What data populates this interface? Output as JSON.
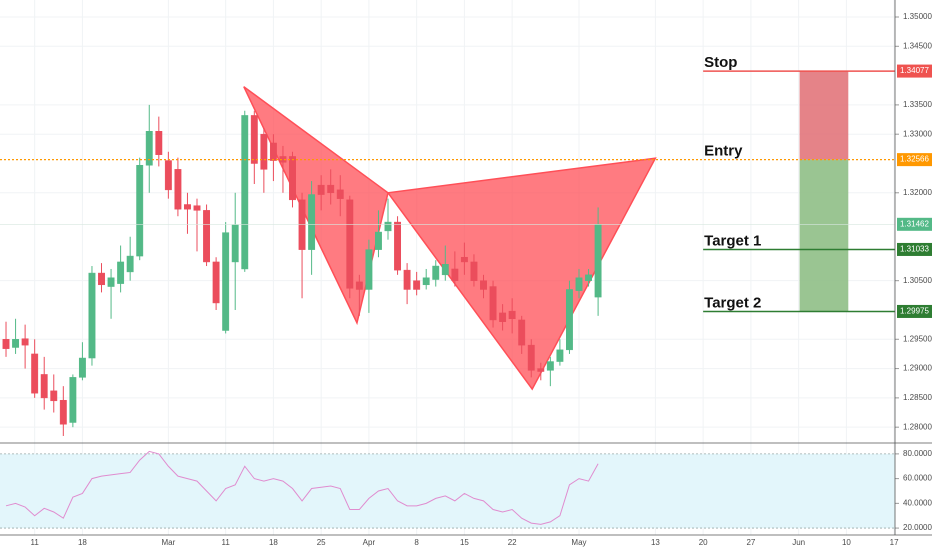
{
  "chart_data": [
    {
      "type": "candlestick",
      "up_color": "#53b987",
      "down_color": "#eb4d5c",
      "open": [
        1.295,
        1.2936,
        1.2951,
        1.2925,
        1.289,
        1.2862,
        1.2846,
        1.2808,
        1.2885,
        1.2918,
        1.3063,
        1.304,
        1.3045,
        1.3065,
        1.3092,
        1.3247,
        1.3305,
        1.3255,
        1.324,
        1.318,
        1.3178,
        1.317,
        1.3082,
        1.2965,
        1.3082,
        1.307,
        1.3332,
        1.33,
        1.3285,
        1.3262,
        1.3262,
        1.3188,
        1.3103,
        1.3213,
        1.3213,
        1.3205,
        1.3188,
        1.3048,
        1.3035,
        1.3103,
        1.3135,
        1.315,
        1.3068,
        1.305,
        1.3043,
        1.3052,
        1.306,
        1.307,
        1.309,
        1.3082,
        1.305,
        1.304,
        1.2995,
        1.2998,
        1.2983,
        1.294,
        1.29,
        1.2897,
        1.2912,
        1.2932,
        1.3033,
        1.305,
        1.3022
      ],
      "high": [
        1.298,
        1.2985,
        1.2975,
        1.295,
        1.292,
        1.289,
        1.287,
        1.289,
        1.2945,
        1.3075,
        1.308,
        1.307,
        1.311,
        1.3125,
        1.326,
        1.335,
        1.333,
        1.327,
        1.326,
        1.32,
        1.319,
        1.318,
        1.309,
        1.315,
        1.32,
        1.334,
        1.334,
        1.331,
        1.33,
        1.328,
        1.327,
        1.32,
        1.322,
        1.323,
        1.324,
        1.323,
        1.3195,
        1.306,
        1.312,
        1.317,
        1.319,
        1.316,
        1.308,
        1.3065,
        1.307,
        1.3085,
        1.311,
        1.31,
        1.3115,
        1.3095,
        1.306,
        1.305,
        1.301,
        1.302,
        1.299,
        1.295,
        1.291,
        1.292,
        1.295,
        1.305,
        1.307,
        1.307,
        1.3175
      ],
      "low": [
        1.292,
        1.2925,
        1.29,
        1.285,
        1.283,
        1.2825,
        1.2785,
        1.28,
        1.288,
        1.2905,
        1.303,
        1.2985,
        1.303,
        1.305,
        1.3085,
        1.32,
        1.3245,
        1.319,
        1.316,
        1.313,
        1.31,
        1.3075,
        1.3,
        1.296,
        1.3,
        1.3065,
        1.3215,
        1.32,
        1.322,
        1.32,
        1.3175,
        1.302,
        1.306,
        1.317,
        1.318,
        1.316,
        1.302,
        1.299,
        1.2995,
        1.309,
        1.312,
        1.306,
        1.301,
        1.3025,
        1.3035,
        1.304,
        1.305,
        1.304,
        1.306,
        1.304,
        1.302,
        1.297,
        1.2965,
        1.296,
        1.2925,
        1.2885,
        1.288,
        1.287,
        1.2905,
        1.2925,
        1.302,
        1.304,
        1.299
      ],
      "close": [
        1.2934,
        1.295,
        1.294,
        1.2858,
        1.285,
        1.2845,
        1.2805,
        1.2885,
        1.2918,
        1.3063,
        1.3043,
        1.3055,
        1.3082,
        1.3092,
        1.3247,
        1.3305,
        1.3265,
        1.3205,
        1.3172,
        1.3172,
        1.317,
        1.3082,
        1.3012,
        1.3132,
        1.3145,
        1.3332,
        1.325,
        1.324,
        1.3255,
        1.3252,
        1.3188,
        1.3103,
        1.3197,
        1.3197,
        1.32,
        1.319,
        1.3037,
        1.3035,
        1.3103,
        1.3133,
        1.315,
        1.3068,
        1.3035,
        1.3035,
        1.3055,
        1.3075,
        1.3078,
        1.305,
        1.3082,
        1.305,
        1.3035,
        1.2983,
        1.298,
        1.2985,
        1.294,
        1.2897,
        1.2895,
        1.2912,
        1.2932,
        1.3035,
        1.3055,
        1.306,
        1.3146
      ],
      "xlim": [
        -0.63,
        93.09
      ],
      "ylim": [
        1.2773,
        1.3529
      ],
      "yticks": [
        {
          "value": 1.35,
          "label": "1.35000"
        },
        {
          "value": 1.345,
          "label": "1.34500"
        },
        {
          "value": 1.335,
          "label": "1.33500"
        },
        {
          "value": 1.33,
          "label": "1.33000"
        },
        {
          "value": 1.32,
          "label": "1.32000"
        },
        {
          "value": 1.305,
          "label": "1.30500"
        },
        {
          "value": 1.295,
          "label": "1.29500"
        },
        {
          "value": 1.29,
          "label": "1.29000"
        },
        {
          "value": 1.285,
          "label": "1.28500"
        },
        {
          "value": 1.28,
          "label": "1.28000"
        }
      ],
      "xticks": [
        {
          "value": 3,
          "label": "11"
        },
        {
          "value": 8,
          "label": "18"
        },
        {
          "value": 17,
          "label": "Mar"
        },
        {
          "value": 23,
          "label": "11"
        },
        {
          "value": 28,
          "label": "18"
        },
        {
          "value": 33,
          "label": "25"
        },
        {
          "value": 38,
          "label": "Apr"
        },
        {
          "value": 43,
          "label": "8"
        },
        {
          "value": 48,
          "label": "15"
        },
        {
          "value": 53,
          "label": "22"
        },
        {
          "value": 60,
          "label": "May"
        },
        {
          "value": 68,
          "label": "13"
        },
        {
          "value": 73,
          "label": "20"
        },
        {
          "value": 78,
          "label": "27"
        },
        {
          "value": 83,
          "label": "Jun"
        },
        {
          "value": 88,
          "label": "10"
        },
        {
          "value": 93,
          "label": "17"
        }
      ],
      "last_price": 1.31462,
      "levels": [
        {
          "name": "Stop",
          "value": 1.34077,
          "color": "#ef5350"
        },
        {
          "name": "Entry",
          "value": 1.32566,
          "color": "#ff9800"
        },
        {
          "name": "Target 1",
          "value": 1.31033,
          "color": "#2e7d32"
        },
        {
          "name": "Target 2",
          "value": 1.29975,
          "color": "#2e7d32"
        }
      ],
      "levels_start": 73,
      "position_x": [
        83.1,
        88.2
      ],
      "pattern": {
        "color": "#ff4f57",
        "x": [
          24.9,
          36.75,
          40,
          55.1,
          68
        ],
        "y": [
          1.3381,
          1.2978,
          1.32,
          1.2865,
          1.3259
        ]
      }
    },
    {
      "type": "line",
      "color": "#e08ccf",
      "values": [
        38,
        40,
        37,
        30,
        36,
        33,
        28,
        45,
        48,
        60,
        62,
        63,
        64,
        65,
        75,
        82,
        80,
        70,
        62,
        60,
        58,
        50,
        42,
        52,
        55,
        70,
        60,
        58,
        60,
        58,
        52,
        42,
        52,
        53,
        54,
        52,
        35,
        35,
        44,
        50,
        52,
        42,
        38,
        38,
        40,
        44,
        46,
        42,
        48,
        44,
        42,
        35,
        33,
        35,
        28,
        24,
        23,
        25,
        30,
        55,
        60,
        58,
        72
      ],
      "ylim": [
        14.4,
        88
      ],
      "yticks": [
        {
          "value": 80,
          "label": "80.0000"
        },
        {
          "value": 60,
          "label": "60.0000"
        },
        {
          "value": 40,
          "label": "40.0000"
        },
        {
          "value": 20,
          "label": "20.0000"
        }
      ],
      "bands": [
        20,
        80
      ]
    }
  ]
}
